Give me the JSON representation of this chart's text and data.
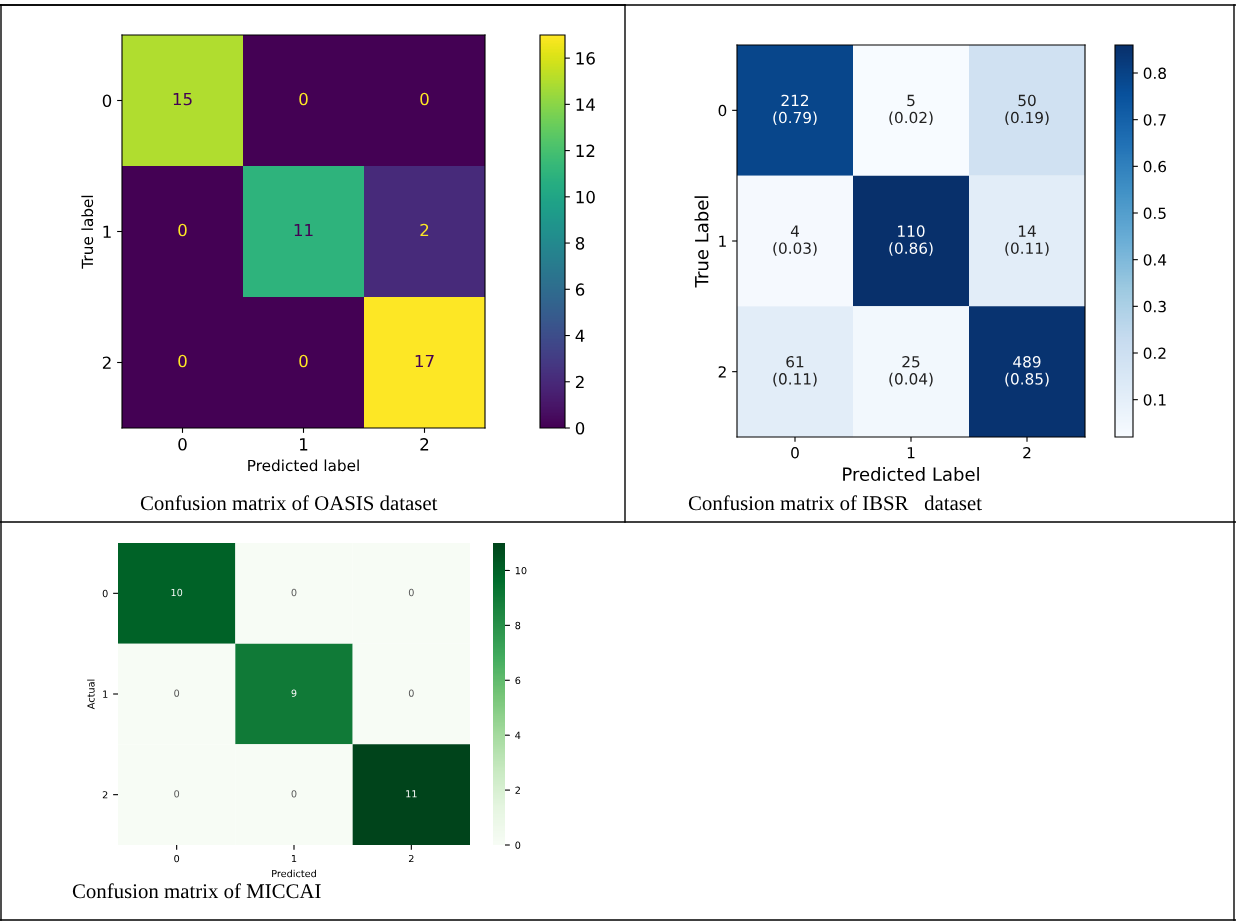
{
  "chart_data": [
    {
      "type": "heatmap",
      "categories": [
        "0",
        "1",
        "2"
      ],
      "y_categories": [
        "0",
        "1",
        "2"
      ],
      "xlabel": "Predicted label",
      "ylabel": "True label",
      "cells": [
        [
          15,
          0,
          0
        ],
        [
          0,
          11,
          2
        ],
        [
          0,
          0,
          17
        ]
      ],
      "data_labels": true,
      "clim": [
        0,
        17
      ],
      "cticks": [
        0,
        2,
        4,
        6,
        8,
        10,
        12,
        14,
        16
      ],
      "annotations": [
        "Confusion matrix of OASIS dataset"
      ]
    },
    {
      "type": "heatmap",
      "categories": [
        "0",
        "1",
        "2"
      ],
      "y_categories": [
        "0",
        "1",
        "2"
      ],
      "xlabel": "Predicted Label",
      "ylabel": "True Label",
      "cells": [
        [
          0.79,
          0.02,
          0.19
        ],
        [
          0.03,
          0.86,
          0.11
        ],
        [
          0.11,
          0.04,
          0.85
        ]
      ],
      "cell_labels": [
        [
          "212\n(0.79)",
          "5\n(0.02)",
          "50\n(0.19)"
        ],
        [
          "4\n(0.03)",
          "110\n(0.86)",
          "14\n(0.11)"
        ],
        [
          "61\n(0.11)",
          "25\n(0.04)",
          "489\n(0.85)"
        ]
      ],
      "clim": [
        0.02,
        0.86
      ],
      "cticks": [
        0.1,
        0.2,
        0.3,
        0.4,
        0.5,
        0.6,
        0.7,
        0.8
      ],
      "annotations": [
        "Confusion matrix of IBSR   dataset"
      ]
    },
    {
      "type": "heatmap",
      "categories": [
        "0",
        "1",
        "2"
      ],
      "y_categories": [
        "0",
        "1",
        "2"
      ],
      "xlabel": "Predicted",
      "ylabel": "Actual",
      "cells": [
        [
          10,
          0,
          0
        ],
        [
          0,
          9,
          0
        ],
        [
          0,
          0,
          11
        ]
      ],
      "data_labels": true,
      "clim": [
        0,
        11
      ],
      "cticks": [
        0,
        2,
        4,
        6,
        8,
        10
      ],
      "annotations": [
        "Confusion matrix of MICCAI"
      ]
    }
  ]
}
